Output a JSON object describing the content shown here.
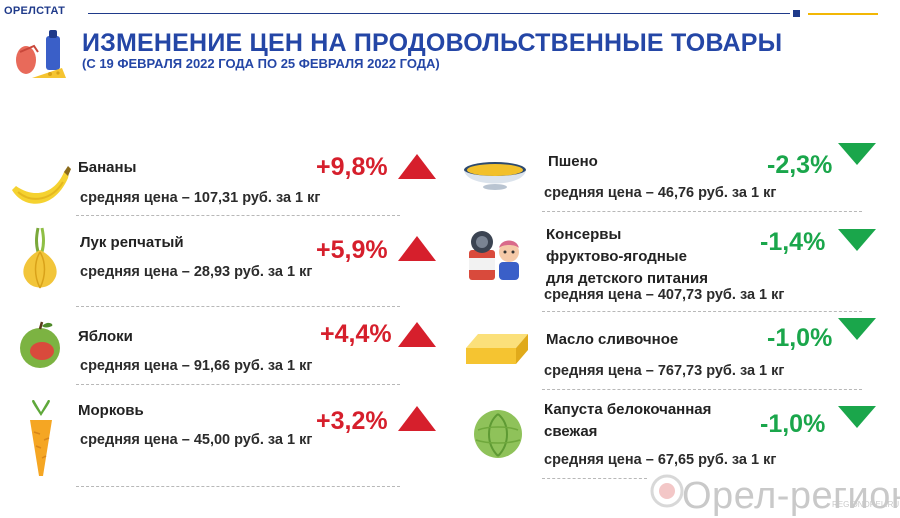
{
  "header": {
    "brand": "ОРЕЛСТАТ",
    "title": "ИЗМЕНЕНИЕ ЦЕН НА ПРОДОВОЛЬСТВЕННЫЕ ТОВАРЫ",
    "subtitle": "(С 19 ФЕВРАЛЯ 2022 ГОДА ПО 25 ФЕВРАЛЯ 2022 ГОДА)",
    "accent_color": "#2446a6"
  },
  "colors": {
    "increase": "#d61f2c",
    "decrease": "#1aa64b"
  },
  "left_items": [
    {
      "name": "Бананы",
      "price": "средняя цена – 107,31 руб. за 1 кг",
      "change": "+9,8%",
      "icon": "banana-icon",
      "direction": "up"
    },
    {
      "name": "Лук репчатый",
      "price": "средняя цена –  28,93 руб. за 1 кг",
      "change": "+5,9%",
      "icon": "onion-icon",
      "direction": "up"
    },
    {
      "name": "Яблоки",
      "price": "средняя цена – 91,66 руб. за 1 кг",
      "change": "+4,4%",
      "icon": "apple-icon",
      "direction": "up"
    },
    {
      "name": "Морковь",
      "price": "средняя цена – 45,00 руб. за 1 кг",
      "change": "+3,2%",
      "icon": "carrot-icon",
      "direction": "up"
    }
  ],
  "right_items": [
    {
      "name": "Пшено",
      "price": "средняя цена – 46,76 руб. за 1 кг",
      "change": "-2,3%",
      "icon": "millet-bowl-icon",
      "direction": "down"
    },
    {
      "name_lines": [
        "Консервы",
        "фруктово-ягодные",
        "для детского питания"
      ],
      "price": "средняя цена – 407,73 руб. за 1 кг",
      "change": "-1,4%",
      "icon": "baby-food-can-icon",
      "direction": "down"
    },
    {
      "name": "Масло сливочное",
      "price": "средняя цена – 767,73 руб. за 1 кг",
      "change": "-1,0%",
      "icon": "butter-icon",
      "direction": "down"
    },
    {
      "name_lines": [
        "Капуста белокочанная",
        "свежая"
      ],
      "price": "средняя цена – 67,65 руб. за 1 кг",
      "change": "-1,0%",
      "icon": "cabbage-icon",
      "direction": "down"
    }
  ],
  "watermark": {
    "text": "Орел-регион",
    "url": "REGIONOREL.RU"
  }
}
